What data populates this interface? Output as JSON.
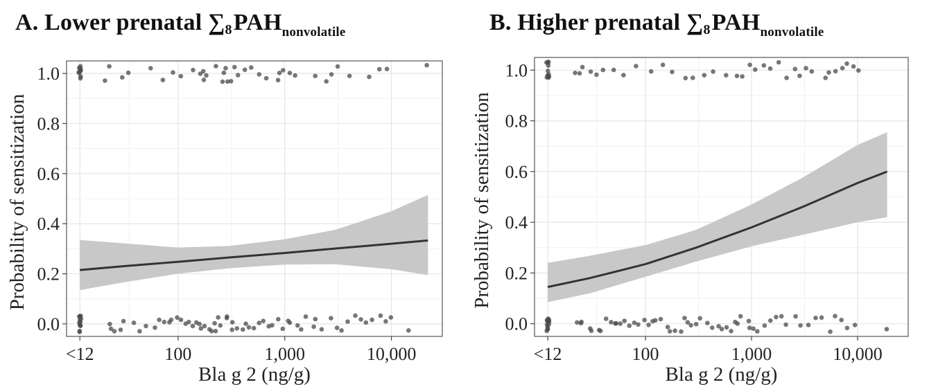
{
  "panels": [
    {
      "title_prefix": "A. Lower prenatal ∑",
      "title_sub": "8",
      "title_main": "PAH",
      "title_sub2": "nonvolatile"
    },
    {
      "title_prefix": "B. Higher prenatal ∑",
      "title_sub": "8",
      "title_main": "PAH",
      "title_sub2": "nonvolatile"
    }
  ],
  "chart_data": [
    {
      "type": "line",
      "title": "A. Lower prenatal ∑8PAHnonvolatile",
      "xlabel": "Bla g 2 (ng/g)",
      "ylabel": "Probability of sensitization",
      "x_scale": "log",
      "xlim": [
        9,
        30000
      ],
      "ylim": [
        -0.05,
        1.05
      ],
      "x_ticks": [
        12,
        100,
        1000,
        10000
      ],
      "x_tick_labels": [
        "<12",
        "100",
        "1,000",
        "10,000"
      ],
      "y_ticks": [
        0.0,
        0.2,
        0.4,
        0.6,
        0.8,
        1.0
      ],
      "y_tick_labels": [
        "0.0",
        "0.2",
        "0.4",
        "0.6",
        "0.8",
        "1.0"
      ],
      "grid": true,
      "series": [
        {
          "x": [
            12,
            30,
            100,
            300,
            1000,
            3000,
            10000,
            22000
          ],
          "y": [
            0.215,
            0.23,
            0.248,
            0.265,
            0.283,
            0.301,
            0.32,
            0.333
          ],
          "lower": [
            0.135,
            0.165,
            0.2,
            0.222,
            0.237,
            0.238,
            0.218,
            0.195
          ],
          "upper": [
            0.335,
            0.322,
            0.305,
            0.311,
            0.338,
            0.376,
            0.45,
            0.515
          ]
        }
      ],
      "points_y1": [
        12,
        12,
        12,
        12,
        12,
        12,
        12,
        12,
        12,
        20,
        23,
        30,
        33,
        55,
        70,
        90,
        110,
        140,
        160,
        170,
        180,
        190,
        230,
        250,
        260,
        280,
        300,
        320,
        340,
        380,
        420,
        480,
        600,
        700,
        850,
        900,
        1000,
        1100,
        1300,
        1900,
        2500,
        2700,
        3000,
        4000,
        6000,
        8000,
        9000,
        21000
      ],
      "points_y0": [
        12,
        12,
        12,
        12,
        12,
        12,
        12,
        12,
        12,
        12,
        12,
        12,
        22,
        24,
        26,
        30,
        32,
        38,
        45,
        52,
        58,
        65,
        72,
        80,
        88,
        95,
        105,
        115,
        125,
        135,
        145,
        155,
        165,
        175,
        190,
        200,
        215,
        230,
        245,
        260,
        275,
        290,
        310,
        330,
        360,
        390,
        420,
        460,
        500,
        560,
        620,
        700,
        780,
        850,
        950,
        1050,
        1150,
        1300,
        1450,
        1600,
        1800,
        2000,
        2300,
        2600,
        3000,
        3500,
        4000,
        4600,
        5200,
        6000,
        6800,
        7600,
        8500,
        9500,
        15000
      ]
    },
    {
      "type": "line",
      "title": "B. Higher prenatal ∑8PAHnonvolatile",
      "xlabel": "Bla g 2 (ng/g)",
      "ylabel": "Probability of sensitization",
      "x_scale": "log",
      "xlim": [
        9,
        30000
      ],
      "ylim": [
        -0.05,
        1.05
      ],
      "x_ticks": [
        12,
        100,
        1000,
        10000
      ],
      "x_tick_labels": [
        "<12",
        "100",
        "1,000",
        "10,000"
      ],
      "y_ticks": [
        0.0,
        0.2,
        0.4,
        0.6,
        0.8,
        1.0
      ],
      "y_tick_labels": [
        "0.0",
        "0.2",
        "0.4",
        "0.6",
        "0.8",
        "1.0"
      ],
      "grid": true,
      "series": [
        {
          "x": [
            12,
            30,
            100,
            300,
            1000,
            3000,
            10000,
            19000
          ],
          "y": [
            0.145,
            0.18,
            0.235,
            0.3,
            0.38,
            0.46,
            0.555,
            0.6
          ],
          "lower": [
            0.085,
            0.12,
            0.185,
            0.245,
            0.305,
            0.35,
            0.4,
            0.42
          ],
          "upper": [
            0.24,
            0.268,
            0.31,
            0.37,
            0.47,
            0.575,
            0.705,
            0.755
          ]
        }
      ],
      "points_y1": [
        12,
        12,
        12,
        12,
        12,
        12,
        12,
        12,
        12,
        12,
        22,
        24,
        26,
        30,
        35,
        40,
        50,
        60,
        80,
        110,
        150,
        180,
        230,
        280,
        350,
        450,
        600,
        750,
        850,
        950,
        1100,
        1300,
        1500,
        1800,
        2100,
        2500,
        2900,
        3300,
        3800,
        5000,
        5500,
        6000,
        7000,
        8000,
        9000,
        10000
      ],
      "points_y0": [
        12,
        12,
        12,
        12,
        12,
        12,
        12,
        12,
        12,
        12,
        12,
        12,
        12,
        22,
        24,
        26,
        29,
        32,
        35,
        38,
        42,
        46,
        50,
        55,
        60,
        66,
        72,
        80,
        88,
        96,
        105,
        115,
        125,
        140,
        155,
        170,
        190,
        210,
        230,
        250,
        280,
        310,
        340,
        380,
        420,
        470,
        520,
        580,
        640,
        700,
        760,
        820,
        900,
        980,
        1050,
        1150,
        1300,
        1500,
        1700,
        1900,
        2200,
        2500,
        3000,
        3500,
        4000,
        4600,
        5400,
        6200,
        7200,
        8000,
        9500,
        18000
      ]
    }
  ]
}
